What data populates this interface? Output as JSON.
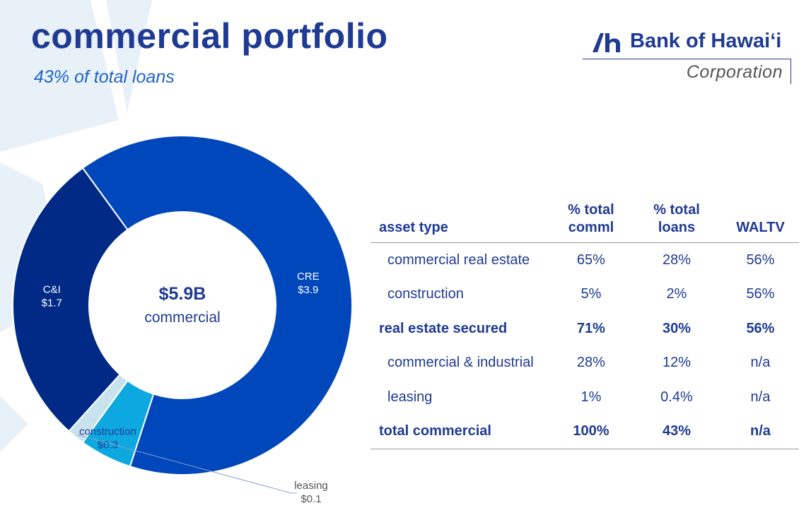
{
  "header": {
    "title": "commercial portfolio",
    "subtitle": "43% of total loans"
  },
  "logo": {
    "name": "Bank of Hawaiʻi",
    "corporation": "Corporation",
    "mark_icon": "bank-of-hawaii-h-mark-icon",
    "brand_color": "#1f3a93"
  },
  "chart_data": {
    "type": "pie",
    "style": "donut",
    "unit": "$B",
    "center_value": "$5.9B",
    "center_label": "commercial",
    "categories": [
      "CRE",
      "construction",
      "leasing",
      "C&I"
    ],
    "values": [
      3.9,
      0.3,
      0.1,
      1.7
    ],
    "labels": [
      {
        "name": "CRE",
        "value": "$3.9"
      },
      {
        "name": "construction",
        "value": "$0.3"
      },
      {
        "name": "leasing",
        "value": "$0.1"
      },
      {
        "name": "C&I",
        "value": "$1.7"
      }
    ],
    "colors": [
      "#0047bb",
      "#0da8e0",
      "#c8e2ee",
      "#002a86"
    ],
    "start_angle_deg": 126
  },
  "table": {
    "headers": {
      "asset_type": "asset type",
      "pct_comml_1": "% total",
      "pct_comml_2": "comml",
      "pct_loans_1": "% total",
      "pct_loans_2": "loans",
      "waltv": "WALTV"
    },
    "rows": [
      {
        "asset": "commercial real estate",
        "pct_comml": "65%",
        "pct_loans": "28%",
        "waltv": "56%"
      },
      {
        "asset": "construction",
        "pct_comml": "5%",
        "pct_loans": "2%",
        "waltv": "56%"
      },
      {
        "asset": "real estate secured",
        "pct_comml": "71%",
        "pct_loans": "30%",
        "waltv": "56%"
      },
      {
        "asset": "commercial & industrial",
        "pct_comml": "28%",
        "pct_loans": "12%",
        "waltv": "n/a"
      },
      {
        "asset": "leasing",
        "pct_comml": "1%",
        "pct_loans": "0.4%",
        "waltv": "n/a"
      },
      {
        "asset": "total commercial",
        "pct_comml": "100%",
        "pct_loans": "43%",
        "waltv": "n/a"
      }
    ]
  }
}
